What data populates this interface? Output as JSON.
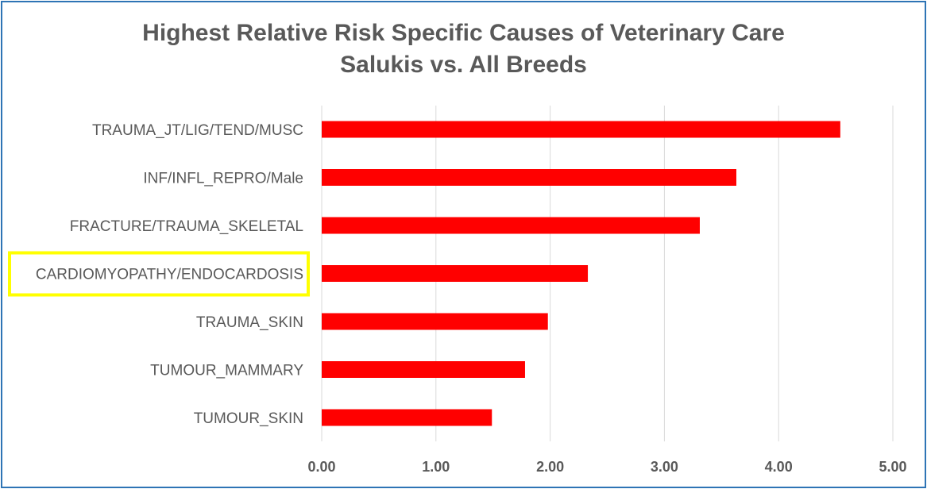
{
  "chart_data": {
    "type": "bar",
    "orientation": "horizontal",
    "title": "Highest Relative Risk Specific Causes of Veterinary Care",
    "subtitle": "Salukis vs. All Breeds",
    "categories": [
      "TRAUMA_JT/LIG/TEND/MUSC",
      "INF/INFL_REPRO/Male",
      "FRACTURE/TRAUMA_SKELETAL",
      "CARDIOMYOPATHY/ENDOCARDOSIS",
      "TRAUMA_SKIN",
      "TUMOUR_MAMMARY",
      "TUMOUR_SKIN"
    ],
    "values": [
      4.54,
      3.63,
      3.31,
      2.33,
      1.98,
      1.78,
      1.49
    ],
    "xlim": [
      0,
      5
    ],
    "xticks": [
      "0.00",
      "1.00",
      "2.00",
      "3.00",
      "4.00",
      "5.00"
    ],
    "highlighted_category": "CARDIOMYOPATHY/ENDOCARDOSIS",
    "grid": "vertical",
    "legend": "none",
    "colors": {
      "bar": "#ff0000",
      "highlight_box": "#ffff00",
      "border": "#2e74b5",
      "text": "#595959",
      "grid": "#d9d9d9"
    }
  }
}
